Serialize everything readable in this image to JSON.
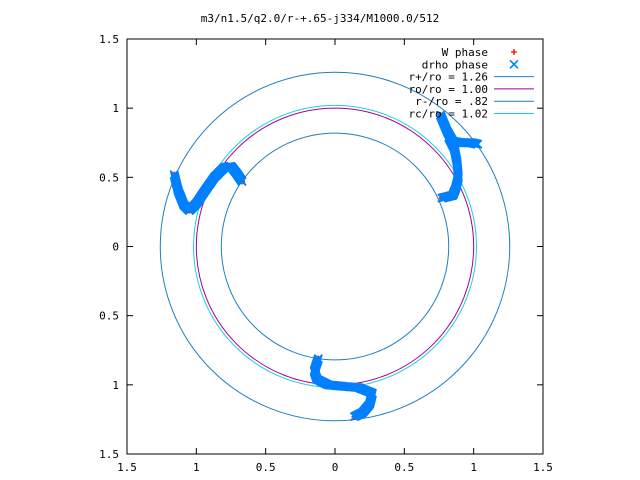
{
  "chart_data": {
    "type": "scatter",
    "title": "m3/n1.5/q2.0/r-+.65-j334/M1000.0/512",
    "xlabel": "",
    "ylabel": "",
    "xlim": [
      -1.5,
      1.5
    ],
    "ylim": [
      -1.5,
      1.5
    ],
    "x_ticks": [
      -1.5,
      -1,
      -0.5,
      0,
      0.5,
      1,
      1.5
    ],
    "y_ticks": [
      -1.5,
      -1,
      -0.5,
      0,
      0.5,
      1,
      1.5
    ],
    "x_tick_labels": [
      "1.5",
      "1",
      "0.5",
      "0",
      "0.5",
      "1",
      "1.5"
    ],
    "y_tick_labels": [
      "1.5",
      "1",
      "0.5",
      "0",
      "0.5",
      "1",
      "1.5"
    ],
    "grid": false,
    "legend_position": "top-right",
    "legend": [
      {
        "label": "W phase",
        "marker": "+",
        "color": "#ff0000"
      },
      {
        "label": "drho phase",
        "marker": "x",
        "color": "#0080ff"
      },
      {
        "label": "r+/ro = 1.26",
        "line": true,
        "color": "#1f7fbf"
      },
      {
        "label": "ro/ro = 1.00",
        "line": true,
        "color": "#a000a0"
      },
      {
        "label": "r-/ro = .82",
        "line": true,
        "color": "#1f7fbf"
      },
      {
        "label": "rc/ro = 1.02",
        "line": true,
        "color": "#22cfd8"
      }
    ],
    "circles": [
      {
        "r": 1.26,
        "color": "#1f7fbf"
      },
      {
        "r": 1.0,
        "color": "#a000a0"
      },
      {
        "r": 0.82,
        "color": "#1f7fbf"
      },
      {
        "r": 1.02,
        "color": "#22cfd8"
      }
    ],
    "series": [
      {
        "name": "W phase",
        "marker": "+",
        "color": "#ff0000",
        "segments": [
          [
            [
              -1.16,
              0.52
            ],
            [
              -1.13,
              0.4
            ],
            [
              -1.09,
              0.3
            ],
            [
              -1.05,
              0.26
            ],
            [
              -1.0,
              0.31
            ],
            [
              -0.94,
              0.4
            ],
            [
              -0.87,
              0.5
            ],
            [
              -0.8,
              0.57
            ],
            [
              -0.75,
              0.58
            ],
            [
              -0.71,
              0.53
            ],
            [
              -0.67,
              0.47
            ]
          ],
          [
            [
              0.76,
              0.95
            ],
            [
              0.79,
              0.87
            ],
            [
              0.82,
              0.79
            ],
            [
              0.86,
              0.71
            ],
            [
              0.88,
              0.61
            ],
            [
              0.89,
              0.5
            ],
            [
              0.87,
              0.42
            ],
            [
              0.85,
              0.37
            ],
            [
              0.77,
              0.35
            ]
          ],
          [
            [
              -0.12,
              -0.81
            ],
            [
              -0.15,
              -0.9
            ],
            [
              -0.13,
              -0.96
            ],
            [
              -0.05,
              -1.0
            ],
            [
              0.05,
              -1.01
            ],
            [
              0.17,
              -1.02
            ],
            [
              0.27,
              -1.06
            ],
            [
              0.25,
              -1.14
            ],
            [
              0.2,
              -1.2
            ],
            [
              0.14,
              -1.23
            ]
          ]
        ]
      },
      {
        "name": "drho phase",
        "marker": "x",
        "color": "#0080ff",
        "segments": [
          [
            [
              -1.16,
              0.52
            ],
            [
              -1.13,
              0.4
            ],
            [
              -1.09,
              0.3
            ],
            [
              -1.05,
              0.26
            ],
            [
              -1.0,
              0.31
            ],
            [
              -0.94,
              0.4
            ],
            [
              -0.87,
              0.5
            ],
            [
              -0.8,
              0.57
            ],
            [
              -0.75,
              0.58
            ],
            [
              -0.71,
              0.53
            ],
            [
              -0.67,
              0.47
            ]
          ],
          [
            [
              0.76,
              0.95
            ],
            [
              0.81,
              0.83
            ],
            [
              0.85,
              0.76
            ],
            [
              0.91,
              0.75
            ],
            [
              0.98,
              0.75
            ],
            [
              1.03,
              0.74
            ]
          ],
          [
            [
              0.82,
              0.79
            ],
            [
              0.86,
              0.71
            ],
            [
              0.88,
              0.61
            ],
            [
              0.89,
              0.5
            ],
            [
              0.87,
              0.42
            ],
            [
              0.85,
              0.37
            ],
            [
              0.77,
              0.35
            ]
          ],
          [
            [
              -0.12,
              -0.81
            ],
            [
              -0.15,
              -0.9
            ],
            [
              -0.13,
              -0.96
            ],
            [
              -0.05,
              -1.0
            ],
            [
              0.05,
              -1.01
            ],
            [
              0.17,
              -1.02
            ],
            [
              0.27,
              -1.06
            ],
            [
              0.25,
              -1.14
            ],
            [
              0.2,
              -1.2
            ],
            [
              0.14,
              -1.23
            ]
          ]
        ]
      }
    ]
  }
}
